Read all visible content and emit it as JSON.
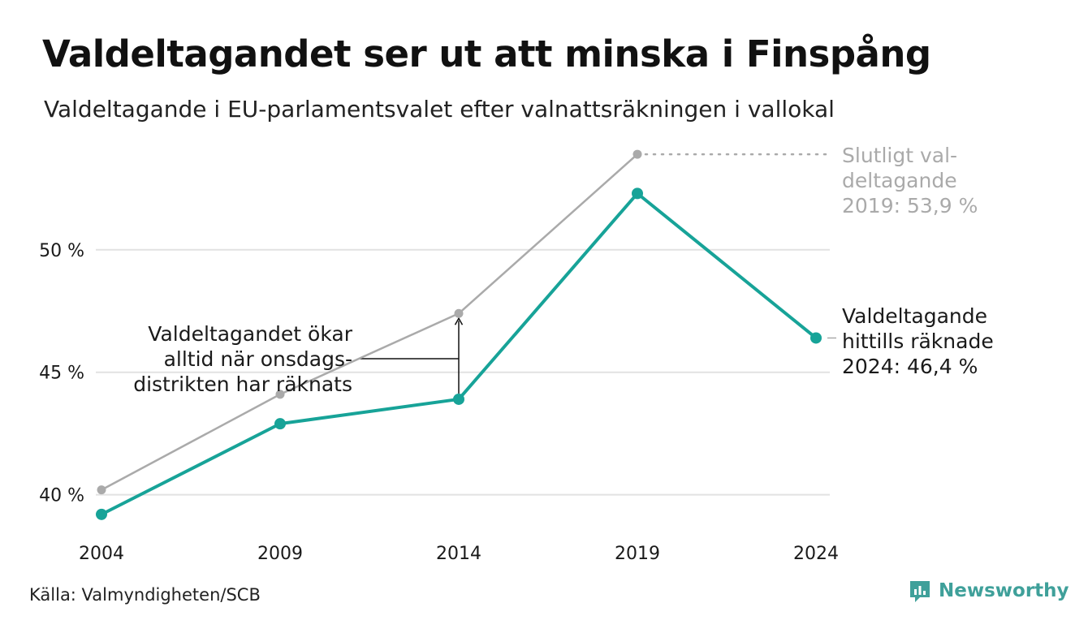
{
  "title": "Valdeltagandet ser ut att minska i Finspång",
  "subtitle": "Valdeltagande i EU-parlamentsvalet efter valnattsräkningen i vallokal",
  "source": "Källa: Valmyndigheten/SCB",
  "brand": "Newsworthy",
  "colors": {
    "counted": "#17a398",
    "final": "#aaaaaa",
    "grid": "#e2e2e2",
    "text": "#1a1a1a"
  },
  "chart_data": {
    "type": "line",
    "x": [
      2004,
      2009,
      2014,
      2019,
      2024
    ],
    "x_tick_labels": [
      "2004",
      "2009",
      "2014",
      "2019",
      "2024"
    ],
    "y_ticks": [
      40,
      45,
      50
    ],
    "y_tick_labels": [
      "40 %",
      "45 %",
      "50 %"
    ],
    "ylim": [
      38.3,
      54.3
    ],
    "grid": true,
    "series": [
      {
        "key": "final",
        "values": [
          40.2,
          44.1,
          47.4,
          53.9,
          null
        ]
      },
      {
        "key": "counted",
        "values": [
          39.2,
          42.9,
          43.9,
          52.3,
          46.4
        ]
      }
    ],
    "annotations": {
      "final_2019": [
        "Slutligt val-",
        "deltagande",
        "2019: 53,9 %"
      ],
      "counted_2024": [
        "Valdeltagande",
        "hittills räknade",
        "2024: 46,4 %"
      ],
      "district": [
        "Valdeltagandet ökar",
        "alltid när onsdags-",
        "distrikten har räknats"
      ]
    }
  }
}
